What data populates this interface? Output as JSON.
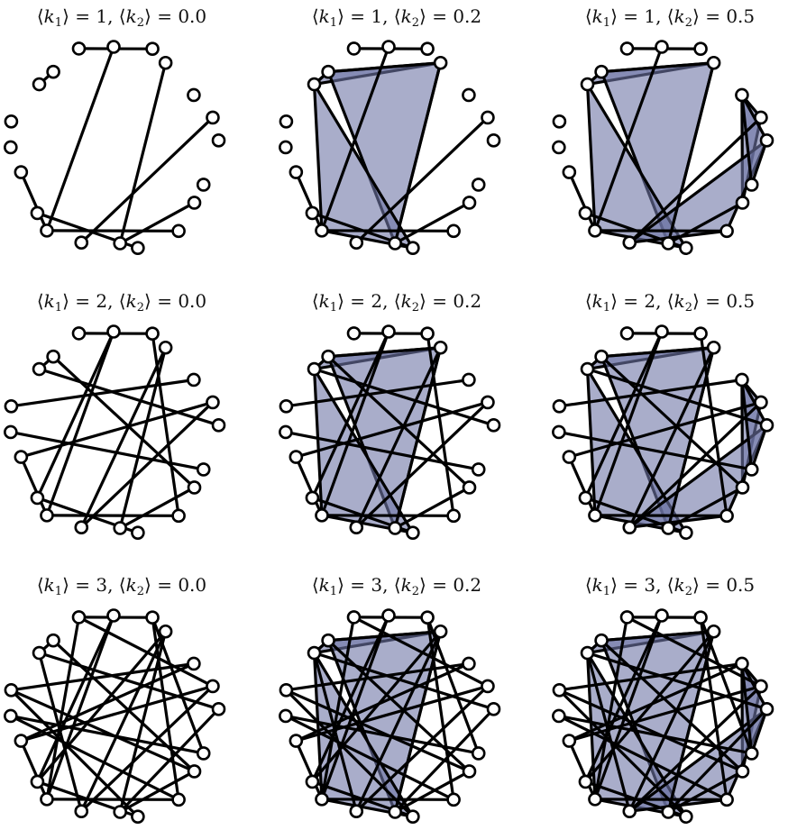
{
  "panels": [
    {
      "k1": "1",
      "k2": "0.0",
      "tri": 0,
      "extra_edges": 0
    },
    {
      "k1": "1",
      "k2": "0.2",
      "tri": 3,
      "extra_edges": 0
    },
    {
      "k1": "1",
      "k2": "0.5",
      "tri": 6,
      "extra_edges": 0
    },
    {
      "k1": "2",
      "k2": "0.0",
      "tri": 0,
      "extra_edges": 8
    },
    {
      "k1": "2",
      "k2": "0.2",
      "tri": 3,
      "extra_edges": 8
    },
    {
      "k1": "2",
      "k2": "0.5",
      "tri": 6,
      "extra_edges": 8
    },
    {
      "k1": "3",
      "k2": "0.0",
      "tri": 0,
      "extra_edges": 18
    },
    {
      "k1": "3",
      "k2": "0.2",
      "tri": 3,
      "extra_edges": 18
    },
    {
      "k1": "3",
      "k2": "0.5",
      "tri": 6,
      "extra_edges": 18
    }
  ],
  "node_count": 20,
  "colors": {
    "triangle_fill": "#6f77a6",
    "node_fill": "#ffffff",
    "stroke": "#000000"
  }
}
